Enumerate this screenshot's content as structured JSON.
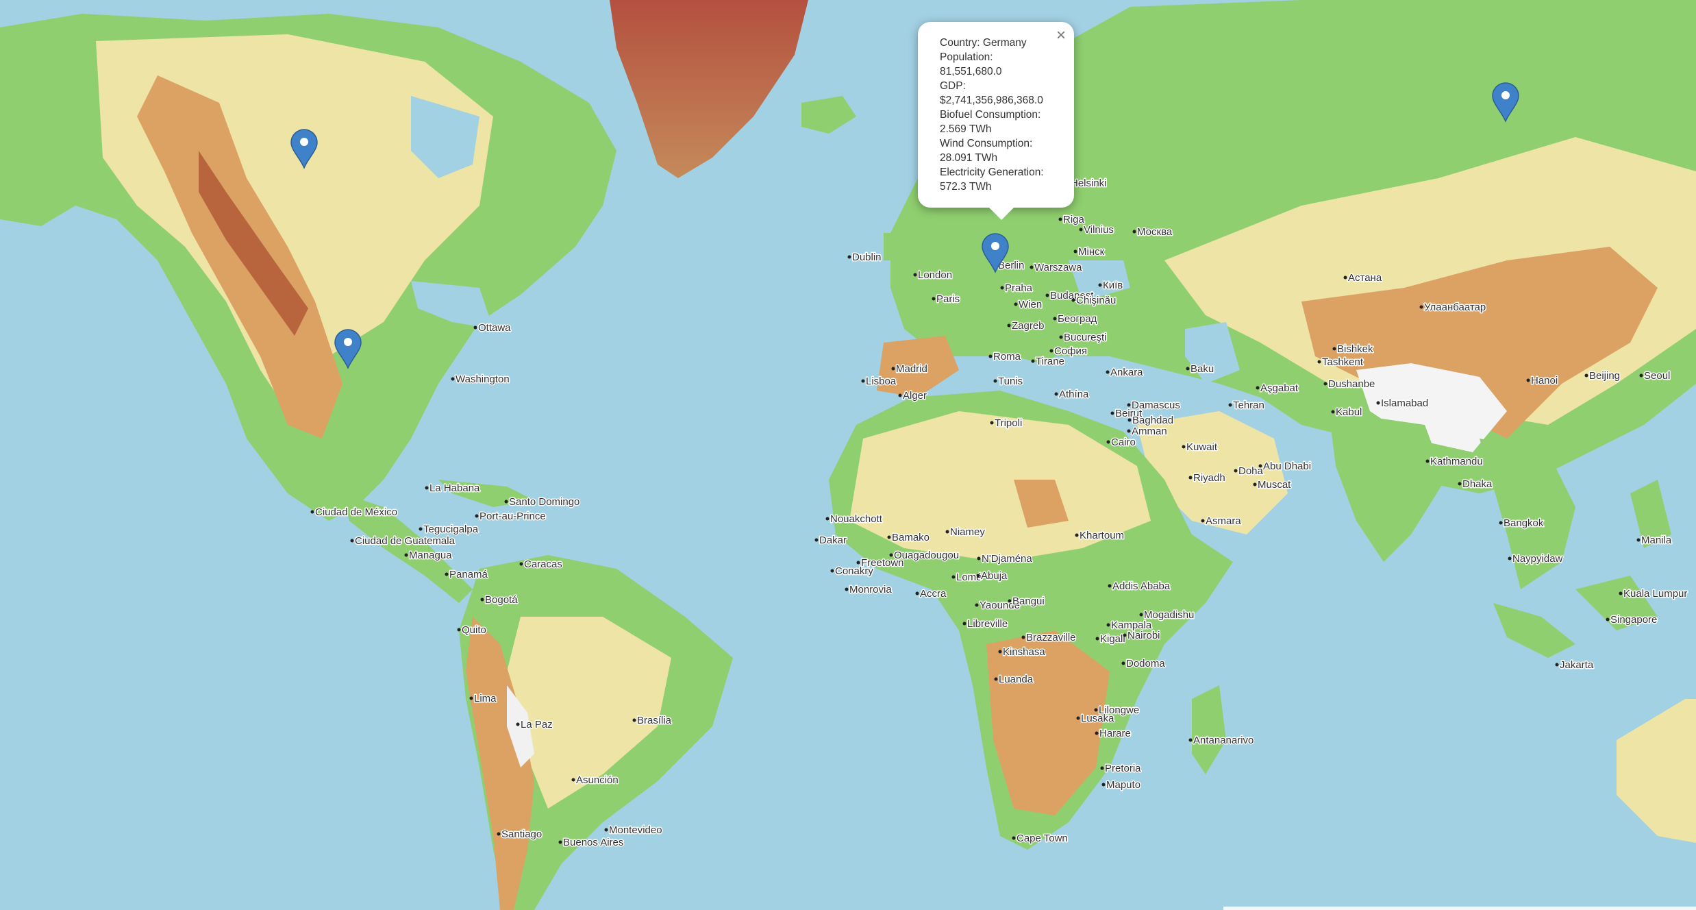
{
  "map": {
    "colors": {
      "ocean": "#a2d1e3",
      "lowland": "#7fc96a",
      "upland": "#efe6a8",
      "mountain": "#d9a15b",
      "high": "#a8564a",
      "snow": "#f4f4f4"
    },
    "cities": [
      "Ottawa",
      "Washington",
      "La Habana",
      "Santo Domingo",
      "Port-au-Prince",
      "Ciudad de México",
      "Tegucigalpa",
      "Ciudad de Guatemala",
      "Managua",
      "Panamá",
      "Caracas",
      "Bogotá",
      "Quito",
      "Lima",
      "La Paz",
      "Brasília",
      "Asunción",
      "Santiago",
      "Buenos Aires",
      "Montevideo",
      "Dublin",
      "London",
      "Paris",
      "Madrid",
      "Lisboa",
      "Roma",
      "Wien",
      "Zagreb",
      "Praha",
      "Berlin",
      "Warszawa",
      "Budapest",
      "Београд",
      "Bucureşti",
      "Chişinău",
      "Київ",
      "Мінск",
      "Vilnius",
      "Riga",
      "Москва",
      "Helsinki",
      "Athína",
      "София",
      "Tirane",
      "Ankara",
      "Alger",
      "Tunis",
      "Tripoli",
      "Cairo",
      "Bamako",
      "Niamey",
      "Ouagadougou",
      "Dakar",
      "Freetown",
      "Conakry",
      "Monrovia",
      "Accra",
      "Lomé",
      "Abuja",
      "N'Djaména",
      "Yaoundé",
      "Bangui",
      "Libreville",
      "Brazzaville",
      "Kinshasa",
      "Luanda",
      "Kampala",
      "Kigali",
      "Nairobi",
      "Dodoma",
      "Lilongwe",
      "Lusaka",
      "Harare",
      "Pretoria",
      "Maputo",
      "Cape Town",
      "Antananarivo",
      "Mogadishu",
      "Addis Ababa",
      "Asmara",
      "Khartoum",
      "Nouakchott",
      "Beirut",
      "Damascus",
      "Amman",
      "Baghdad",
      "Kuwait",
      "Riyadh",
      "Doha",
      "Abu Dhabi",
      "Muscat",
      "Tehran",
      "Baku",
      "Aşgabat",
      "Tashkent",
      "Dushanbe",
      "Bishkek",
      "Kabul",
      "Islamabad",
      "Астана",
      "Улаанбаатар",
      "Kathmandu",
      "Dhaka",
      "Hanoi",
      "Bangkok",
      "Naypyidaw",
      "Manila",
      "Kuala Lumpur",
      "Singapore",
      "Jakarta",
      "Beijing",
      "Seoul"
    ],
    "markers": [
      {
        "name": "marker-canada"
      },
      {
        "name": "marker-united-states"
      },
      {
        "name": "marker-germany"
      },
      {
        "name": "marker-russia"
      }
    ]
  },
  "popup": {
    "close_label": "×",
    "lines": [
      "Country: Germany",
      "Population: 81,551,680.0",
      "GDP: $2,741,356,986,368.0",
      "Biofuel Consumption: 2.569 TWh",
      "Wind Consumption: 28.091 TWh",
      "Electricity Generation: 572.3 TWh"
    ]
  }
}
